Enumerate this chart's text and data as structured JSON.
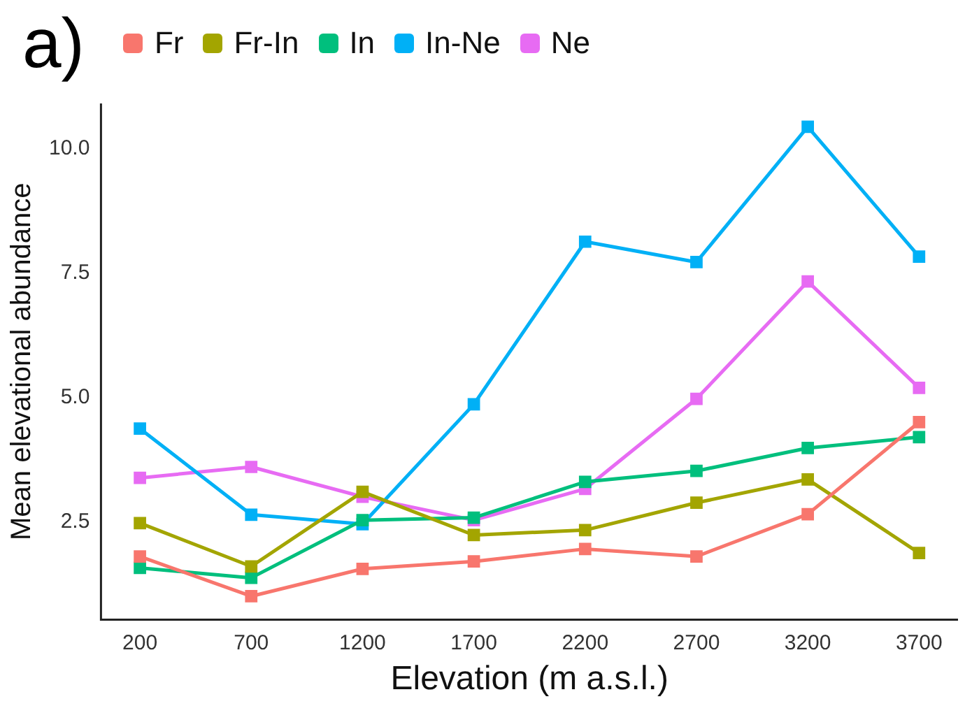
{
  "chart_data": {
    "type": "line",
    "title": "a)",
    "xlabel": "Elevation (m a.s.l.)",
    "ylabel": "Mean elevational abundance",
    "x": [
      200,
      700,
      1200,
      1700,
      2200,
      2700,
      3200,
      3700
    ],
    "xlim": [
      25,
      3875
    ],
    "xticks": [
      200,
      700,
      1200,
      1700,
      2200,
      2700,
      3200,
      3700
    ],
    "ylim": [
      0.53,
      10.91
    ],
    "yticks": [
      {
        "value": 2.5,
        "label": "2.5"
      },
      {
        "value": 5,
        "label": "5.0"
      },
      {
        "value": 7.5,
        "label": "7.5"
      },
      {
        "value": 10,
        "label": "10.0"
      }
    ],
    "grid": false,
    "legend": "top",
    "marker": "square",
    "line_style": "solid",
    "series": [
      {
        "name": "Fr",
        "color": "#f8766d",
        "values": [
          1.8,
          1.0,
          1.55,
          1.7,
          1.95,
          1.8,
          2.65,
          4.5
        ]
      },
      {
        "name": "Fr-In",
        "color": "#a3a500",
        "values": [
          2.47,
          1.6,
          3.1,
          2.23,
          2.33,
          2.88,
          3.35,
          1.87
        ]
      },
      {
        "name": "In",
        "color": "#00bf7d",
        "values": [
          1.57,
          1.37,
          2.53,
          2.58,
          3.3,
          3.52,
          3.98,
          4.2
        ]
      },
      {
        "name": "In-Ne",
        "color": "#00b0f6",
        "values": [
          4.37,
          2.64,
          2.45,
          4.86,
          8.13,
          7.72,
          10.44,
          7.83
        ]
      },
      {
        "name": "Ne",
        "color": "#e76bf3",
        "values": [
          3.38,
          3.6,
          3.0,
          2.53,
          3.16,
          4.97,
          7.33,
          5.19
        ]
      }
    ]
  }
}
